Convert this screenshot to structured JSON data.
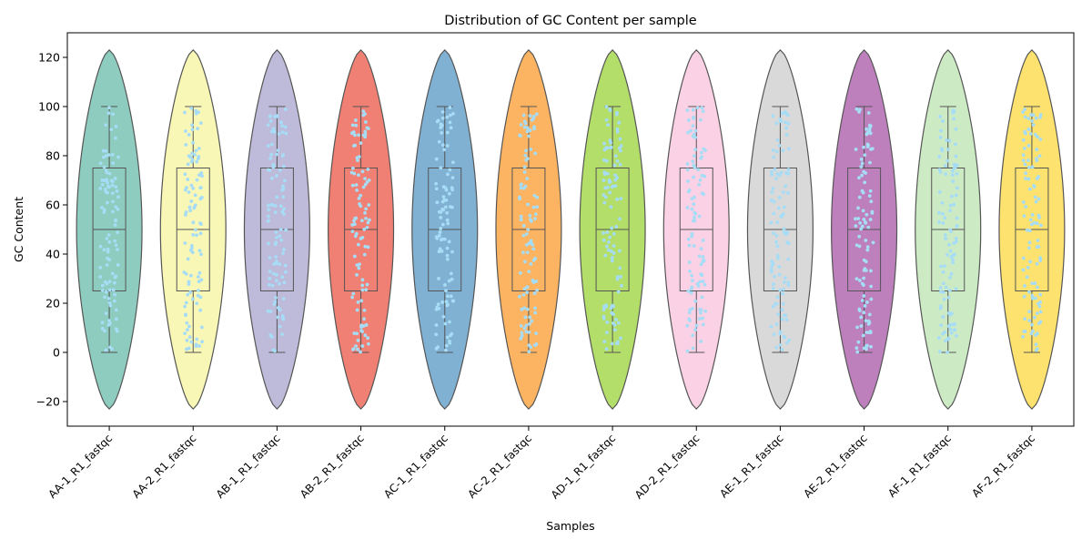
{
  "chart_data": {
    "type": "violin",
    "title": "Distribution of GC Content per sample",
    "xlabel": "Samples",
    "ylabel": "GC Content",
    "ylim": [
      -30,
      130
    ],
    "yticks": [
      -20,
      0,
      20,
      40,
      60,
      80,
      100,
      120
    ],
    "grid": false,
    "legend": "none",
    "jitter_color": "#a6dcf5",
    "box_color": "#555555",
    "categories": [
      "AA-1_R1_fastqc",
      "AA-2_R1_fastqc",
      "AB-1_R1_fastqc",
      "AB-2_R1_fastqc",
      "AC-1_R1_fastqc",
      "AC-2_R1_fastqc",
      "AD-1_R1_fastqc",
      "AD-2_R1_fastqc",
      "AE-1_R1_fastqc",
      "AE-2_R1_fastqc",
      "AF-1_R1_fastqc",
      "AF-2_R1_fastqc"
    ],
    "colors": [
      "#8dccbe",
      "#f8f7b6",
      "#bebad9",
      "#f08073",
      "#80b1d3",
      "#fdb462",
      "#b3de69",
      "#fbd1e5",
      "#d9d9d9",
      "#bd80bd",
      "#ccebc5",
      "#fde26f"
    ],
    "stats": {
      "min": 0,
      "q1": 25,
      "median": 50,
      "q3": 75,
      "max": 100,
      "violin_min": -23,
      "violin_max": 123
    }
  }
}
